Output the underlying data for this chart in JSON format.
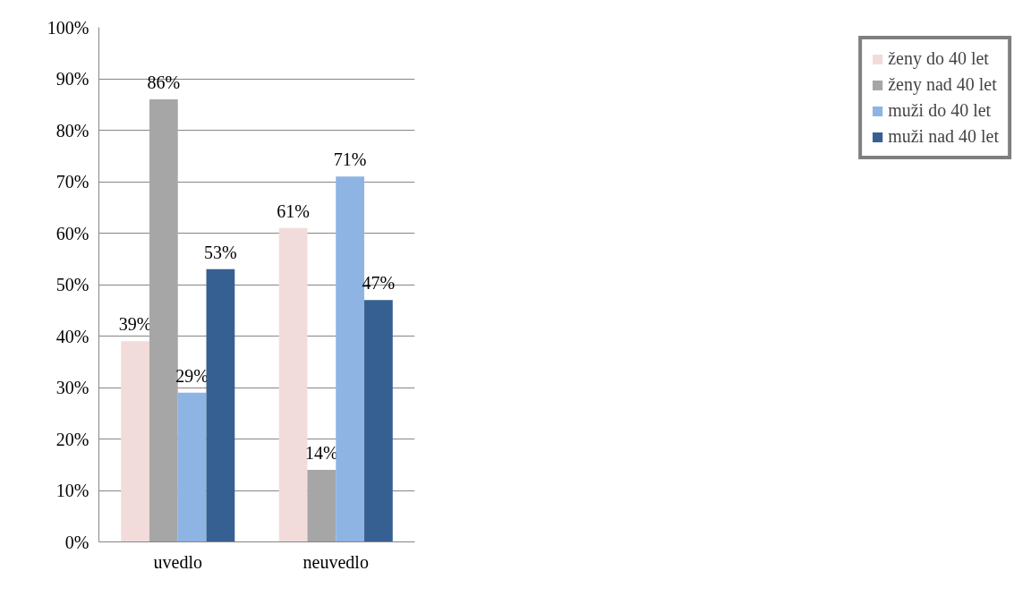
{
  "chart_data": {
    "type": "bar",
    "categories": [
      "uvedlo",
      "neuvedlo"
    ],
    "series": [
      {
        "name": "ženy do 40 let",
        "color": "#f2dcdb",
        "values": [
          39,
          61
        ]
      },
      {
        "name": "ženy nad 40 let",
        "color": "#a6a6a6",
        "values": [
          86,
          14
        ]
      },
      {
        "name": "muži do 40 let",
        "color": "#8eb4e3",
        "values": [
          29,
          71
        ]
      },
      {
        "name": "muži nad 40 let",
        "color": "#376092",
        "values": [
          53,
          47
        ]
      }
    ],
    "ylim": [
      0,
      100
    ],
    "yticks": [
      {
        "value": 0,
        "label": "0%"
      },
      {
        "value": 10,
        "label": "10%"
      },
      {
        "value": 20,
        "label": "20%"
      },
      {
        "value": 30,
        "label": "30%"
      },
      {
        "value": 40,
        "label": "40%"
      },
      {
        "value": 50,
        "label": "50%"
      },
      {
        "value": 60,
        "label": "60%"
      },
      {
        "value": 70,
        "label": "70%"
      },
      {
        "value": 80,
        "label": "80%"
      },
      {
        "value": 90,
        "label": "90%"
      },
      {
        "value": 100,
        "label": "100%"
      }
    ],
    "value_labels": [
      [
        "39%",
        "61%"
      ],
      [
        "86%",
        "14%"
      ],
      [
        "29%",
        "71%"
      ],
      [
        "53%",
        "47%"
      ]
    ],
    "grid": "y",
    "legend": "right"
  }
}
